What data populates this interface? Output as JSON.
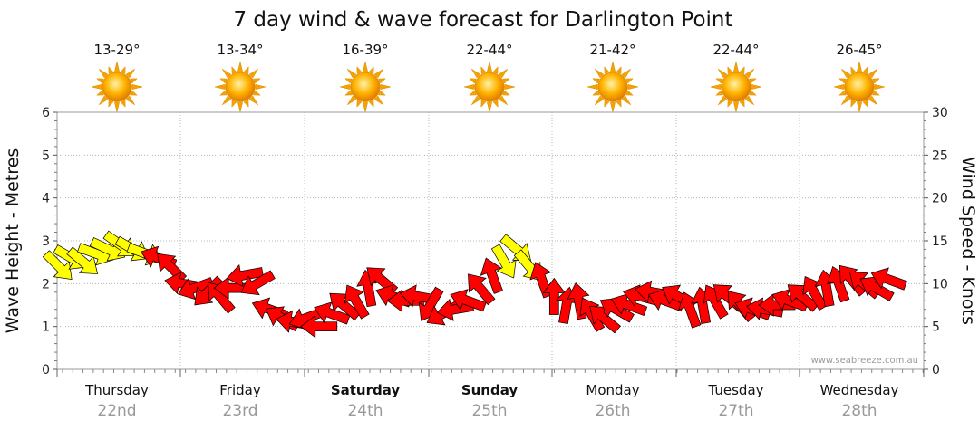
{
  "chart_data": {
    "type": "line",
    "title": "7 day wind & wave forecast for Darlington Point",
    "ylabel_left": "Wave Height - Metres",
    "ylabel_right": "Wind Speed - Knots",
    "ylim_left": [
      0,
      6
    ],
    "ylim_right": [
      0,
      30
    ],
    "yticks_left": [
      "0",
      "1",
      "2",
      "3",
      "4",
      "5",
      "6"
    ],
    "yticks_right": [
      "0",
      "5",
      "10",
      "15",
      "20",
      "25",
      "30"
    ],
    "grid": true,
    "credit": "www.seabreeze.com.au",
    "days": [
      {
        "day": "Thursday",
        "date": "22nd",
        "temp": "13-29°",
        "bold": false
      },
      {
        "day": "Friday",
        "date": "23rd",
        "temp": "13-34°",
        "bold": false
      },
      {
        "day": "Saturday",
        "date": "24th",
        "temp": "16-39°",
        "bold": true
      },
      {
        "day": "Sunday",
        "date": "25th",
        "temp": "22-44°",
        "bold": true
      },
      {
        "day": "Monday",
        "date": "26th",
        "temp": "21-42°",
        "bold": false
      },
      {
        "day": "Tuesday",
        "date": "27th",
        "temp": "22-44°",
        "bold": false
      },
      {
        "day": "Wednesday",
        "date": "28th",
        "temp": "26-45°",
        "bold": false
      }
    ],
    "wind_arrow_colors": {
      "light": "#ffff00",
      "moderate": "#ff0000"
    },
    "wind_series": {
      "name": "Wind",
      "t": [
        0.0,
        0.1,
        0.2,
        0.3,
        0.4,
        0.5,
        0.6,
        0.7,
        0.8,
        0.9,
        1.0,
        1.1,
        1.2,
        1.3,
        1.4,
        1.5,
        1.6,
        1.7,
        1.8,
        1.9,
        2.0,
        2.1,
        2.2,
        2.3,
        2.4,
        2.5,
        2.6,
        2.7,
        2.8,
        2.9,
        3.0,
        3.1,
        3.2,
        3.3,
        3.4,
        3.5,
        3.6,
        3.7,
        3.8,
        3.9,
        4.0,
        4.1,
        4.2,
        4.3,
        4.4,
        4.5,
        4.6,
        4.7,
        4.8,
        4.9,
        5.0,
        5.1,
        5.2,
        5.3,
        5.4,
        5.5,
        5.6,
        5.7,
        5.8,
        5.9,
        6.0,
        6.1,
        6.2,
        6.3,
        6.4,
        6.5,
        6.6,
        6.7
      ],
      "knots": [
        12,
        13,
        12.5,
        13.5,
        14,
        14.5,
        14,
        13.5,
        13,
        12,
        10,
        9.5,
        9,
        8.5,
        9.5,
        11,
        10,
        7,
        6,
        5.5,
        6,
        5,
        6.5,
        7.5,
        8,
        9.5,
        10.5,
        8.5,
        8,
        8.5,
        7.5,
        6.5,
        7,
        8,
        9.5,
        11,
        12.5,
        14,
        12,
        10.5,
        8.5,
        7.5,
        8,
        6.5,
        6,
        7,
        7.5,
        8.5,
        9,
        8,
        8.5,
        7,
        7.5,
        8,
        8.5,
        7.5,
        7,
        7,
        7.5,
        8,
        8.5,
        9,
        9.5,
        10,
        10.5,
        10,
        9.5,
        10.5
      ],
      "dir_deg": [
        45,
        30,
        40,
        20,
        25,
        35,
        30,
        20,
        200,
        225,
        190,
        160,
        135,
        230,
        180,
        170,
        150,
        200,
        210,
        190,
        160,
        180,
        200,
        220,
        240,
        260,
        220,
        200,
        180,
        190,
        120,
        150,
        170,
        200,
        230,
        250,
        60,
        40,
        50,
        250,
        270,
        280,
        260,
        240,
        220,
        210,
        200,
        195,
        190,
        200,
        210,
        250,
        260,
        240,
        220,
        230,
        200,
        190,
        180,
        200,
        220,
        240,
        260,
        250,
        230,
        220,
        210,
        200
      ],
      "category": [
        "light",
        "light",
        "light",
        "light",
        "light",
        "light",
        "light",
        "light",
        "moderate",
        "moderate",
        "moderate",
        "moderate",
        "moderate",
        "moderate",
        "moderate",
        "moderate",
        "moderate",
        "moderate",
        "moderate",
        "moderate",
        "moderate",
        "moderate",
        "moderate",
        "moderate",
        "moderate",
        "moderate",
        "moderate",
        "moderate",
        "moderate",
        "moderate",
        "moderate",
        "moderate",
        "moderate",
        "moderate",
        "moderate",
        "moderate",
        "light",
        "light",
        "light",
        "moderate",
        "moderate",
        "moderate",
        "moderate",
        "moderate",
        "moderate",
        "moderate",
        "moderate",
        "moderate",
        "moderate",
        "moderate",
        "moderate",
        "moderate",
        "moderate",
        "moderate",
        "moderate",
        "moderate",
        "moderate",
        "moderate",
        "moderate",
        "moderate",
        "moderate",
        "moderate",
        "moderate",
        "moderate",
        "moderate",
        "moderate",
        "moderate",
        "moderate"
      ]
    }
  }
}
